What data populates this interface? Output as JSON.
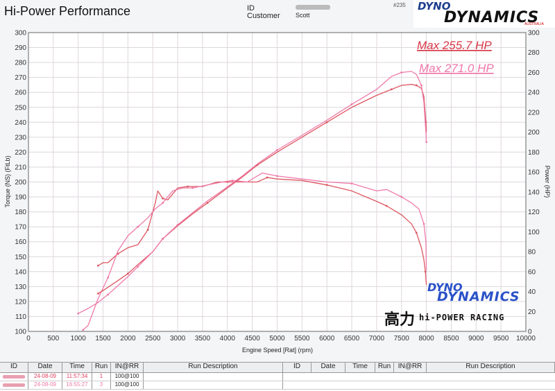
{
  "header": {
    "title": "Hi-Power Performance",
    "id_label": "ID",
    "customer_label": "Customer",
    "customer_value": "Scott",
    "file_no": "#235",
    "logo_line1": "DYNO",
    "logo_line2": "DYNAMICS",
    "logo_sub": "AUSTRALIA"
  },
  "watermark": {
    "dyno": "DYNO",
    "dynamics": "DYNAMICS",
    "chinese": "高力",
    "name": "hi-POWER RACING"
  },
  "colors": {
    "run1": "#dd5560",
    "run3": "#ee7aa8",
    "grid": "#ddd6dc",
    "max1": "#d93848",
    "max2": "#ee77aa"
  },
  "chart_data": {
    "type": "line",
    "xlabel": "Engine Speed [Rat] (rpm)",
    "ylabel_left": "Torque (NS) (FtLb)",
    "ylabel_right": "Power (HP)",
    "xlim": [
      0,
      10000
    ],
    "ylim_left": [
      100,
      300
    ],
    "ylim_right": [
      0,
      300
    ],
    "x_ticks": [
      0,
      500,
      1000,
      1500,
      2000,
      2500,
      3000,
      3500,
      4000,
      4500,
      5000,
      5500,
      6000,
      6500,
      7000,
      7500,
      8000,
      8500,
      9000,
      9500,
      10000
    ],
    "y_ticks_left": [
      100,
      110,
      120,
      130,
      140,
      150,
      160,
      170,
      180,
      190,
      200,
      210,
      220,
      230,
      240,
      250,
      260,
      270,
      280,
      290,
      300
    ],
    "y_ticks_right": [
      0,
      20,
      40,
      60,
      80,
      100,
      120,
      140,
      160,
      180,
      200,
      220,
      240,
      260,
      280,
      300
    ],
    "grid": true,
    "annotations": [
      "Max 255.7 HP",
      "Max 271.0 HP"
    ],
    "series": [
      {
        "axis": "left",
        "run": 1,
        "x": [
          1400,
          1500,
          1600,
          1800,
          2000,
          2200,
          2400,
          2550,
          2600,
          2700,
          2800,
          3000,
          3200,
          3500,
          3800,
          4000,
          4300,
          4600,
          4800,
          5000,
          5500,
          6000,
          6500,
          7000,
          7200,
          7500,
          7700,
          7800,
          7900,
          7950,
          7980,
          8000
        ],
        "y": [
          144,
          146,
          146,
          152,
          156,
          158,
          168,
          186,
          194,
          189,
          188,
          196,
          197,
          197,
          200,
          200,
          200,
          200,
          203,
          202,
          201,
          198,
          194,
          187,
          184,
          178,
          172,
          166,
          156,
          148,
          140,
          131
        ]
      },
      {
        "axis": "left",
        "run": 3,
        "x": [
          1100,
          1200,
          1400,
          1600,
          1800,
          2000,
          2200,
          2400,
          2550,
          2700,
          2900,
          3100,
          3300,
          3600,
          3900,
          4100,
          4400,
          4700,
          5000,
          5500,
          6000,
          6500,
          7000,
          7200,
          7500,
          7700,
          7850,
          7950,
          7990,
          8000
        ],
        "y": [
          101,
          104,
          122,
          136,
          154,
          164,
          170,
          176,
          182,
          186,
          194,
          196,
          196,
          198,
          200,
          201,
          200,
          206,
          204,
          202,
          200,
          199,
          194,
          195,
          190,
          186,
          182,
          172,
          160,
          141
        ]
      },
      {
        "axis": "right",
        "run": 1,
        "x": [
          1400,
          1500,
          1800,
          2000,
          2200,
          2500,
          2700,
          3000,
          3300,
          3600,
          4000,
          4300,
          4600,
          5000,
          5500,
          6000,
          6500,
          7000,
          7300,
          7500,
          7700,
          7800,
          7900,
          7950,
          7990,
          8000
        ],
        "y": [
          38,
          41,
          51,
          58,
          67,
          80,
          93,
          106,
          118,
          129,
          144,
          155,
          167,
          180,
          195,
          210,
          225,
          237,
          243,
          247,
          248,
          247,
          244,
          236,
          210,
          200
        ]
      },
      {
        "axis": "right",
        "run": 3,
        "x": [
          1000,
          1200,
          1400,
          1600,
          1800,
          2000,
          2200,
          2500,
          2700,
          3000,
          3300,
          3600,
          4000,
          4300,
          4600,
          5000,
          5500,
          6000,
          6500,
          7000,
          7300,
          7500,
          7700,
          7800,
          7900,
          7950,
          7990,
          8000
        ],
        "y": [
          18,
          23,
          29,
          37,
          46,
          55,
          65,
          80,
          93,
          107,
          119,
          131,
          145,
          156,
          168,
          182,
          197,
          212,
          228,
          243,
          256,
          260,
          261,
          258,
          247,
          230,
          200,
          190
        ]
      }
    ]
  },
  "table": {
    "headers": [
      "ID",
      "Date",
      "Time",
      "Run",
      "IN@RR",
      "Run Description",
      "ID",
      "Date",
      "Time",
      "Run",
      "IN@RR",
      "Run Description"
    ],
    "rows": [
      {
        "date": "24-08-09",
        "time": "11:57:34",
        "run": "1",
        "inrr": "100@100"
      },
      {
        "date": "24-08-09",
        "time": "16:55:27",
        "run": "3",
        "inrr": "100@100"
      }
    ]
  }
}
